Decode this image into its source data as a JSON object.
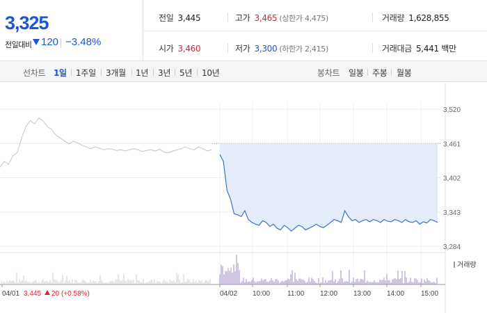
{
  "summary": {
    "current_price": "3,325",
    "change_label": "전일대비",
    "change_value": "120",
    "change_percent": "−3.48%",
    "prev_close": {
      "label": "전일",
      "value": "3,445"
    },
    "open": {
      "label": "시가",
      "value": "3,460"
    },
    "high": {
      "label": "고가",
      "value": "3,465",
      "sub": "(상한가 4,475)"
    },
    "low": {
      "label": "저가",
      "value": "3,300",
      "sub": "(하한가 2,415)"
    },
    "volume": {
      "label": "거래량",
      "value": "1,628,855"
    },
    "trade_amount": {
      "label": "거래대금",
      "value": "5,441 백만"
    }
  },
  "line_tabs": {
    "label": "선차트",
    "items": [
      "1일",
      "1주일",
      "3개월",
      "1년",
      "3년",
      "5년",
      "10년"
    ],
    "active": "1일"
  },
  "candle_tabs": {
    "label": "봉차트",
    "items": [
      "일봉",
      "주봉",
      "월봉"
    ]
  },
  "chart_data": {
    "type": "line",
    "y_ticks": [
      "3,520",
      "3,461",
      "3,402",
      "3,343",
      "3,284"
    ],
    "y_tick_values": [
      3520,
      3461,
      3402,
      3343,
      3284
    ],
    "ylim": [
      3284,
      3520
    ],
    "reference_price": 3461,
    "x_labels": [
      "04/01",
      "04/02",
      "10:00",
      "11:00",
      "12:00",
      "13:00",
      "14:00",
      "15:00"
    ],
    "previous_day": {
      "date": "04/01",
      "close": "3,445",
      "change": "20",
      "change_percent": "(+0.58%)",
      "values": [
        3420,
        3430,
        3425,
        3440,
        3445,
        3470,
        3490,
        3500,
        3495,
        3505,
        3500,
        3490,
        3485,
        3475,
        3470,
        3465,
        3460,
        3465,
        3462,
        3458,
        3455,
        3452,
        3455,
        3453,
        3450,
        3452,
        3451,
        3449,
        3450,
        3448,
        3450,
        3452,
        3450,
        3447,
        3449,
        3450,
        3448,
        3451,
        3446,
        3445,
        3448,
        3450,
        3452,
        3455,
        3452,
        3450,
        3455,
        3452,
        3448,
        3450
      ]
    },
    "today": {
      "date": "04/02",
      "values": [
        3442,
        3430,
        3380,
        3365,
        3340,
        3338,
        3335,
        3345,
        3330,
        3325,
        3322,
        3320,
        3328,
        3325,
        3318,
        3322,
        3315,
        3312,
        3320,
        3316,
        3310,
        3315,
        3320,
        3318,
        3312,
        3315,
        3318,
        3322,
        3318,
        3316,
        3320,
        3325,
        3330,
        3328,
        3325,
        3345,
        3335,
        3328,
        3330,
        3325,
        3328,
        3330,
        3326,
        3330,
        3328,
        3325,
        3330,
        3327,
        3326,
        3330,
        3328,
        3325,
        3330,
        3326,
        3325,
        3328,
        3322,
        3326,
        3324,
        3330,
        3328,
        3325
      ]
    },
    "volume_legend": "거래량",
    "grid": true
  },
  "colors": {
    "up": "#e0222f",
    "down": "#1a56d6",
    "prev_line": "#c4c4c4",
    "today_line": "#3b73c9",
    "area_fill": "#e3ecf8",
    "volume_bar": "#a08cc6"
  }
}
